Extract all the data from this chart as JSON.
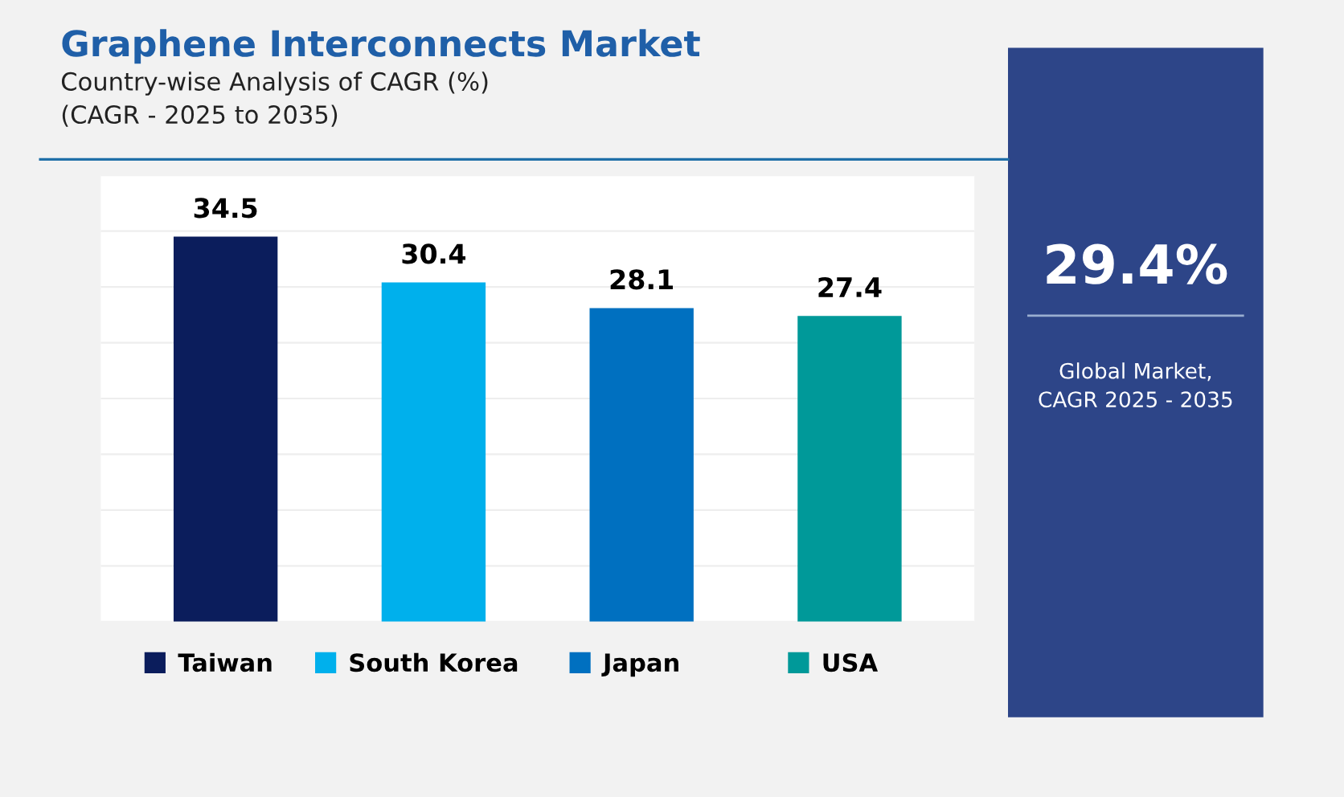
{
  "chart_data": [
    {
      "type": "bar",
      "title": "Graphene Interconnects Market",
      "subtitle": "Country-wise Analysis of CAGR (%)\n(CAGR - 2025 to 2035)",
      "categories": [
        "Taiwan",
        "South Korea",
        "Japan",
        "USA"
      ],
      "values": [
        34.5,
        30.4,
        28.1,
        27.4
      ],
      "colors": [
        "#0b1d5c",
        "#00b0ec",
        "#0070c0",
        "#009999"
      ],
      "data_labels": true,
      "grid": "y",
      "tick_labels": "x",
      "ylim": [
        0,
        40
      ],
      "yticks": [
        {
          "value": 0,
          "label": null
        },
        {
          "value": 5,
          "label": null
        },
        {
          "value": 10,
          "label": null
        },
        {
          "value": 15,
          "label": null
        },
        {
          "value": 20,
          "label": null
        },
        {
          "value": 25,
          "label": null
        },
        {
          "value": 30,
          "label": null
        },
        {
          "value": 35,
          "label": null
        },
        {
          "value": 40,
          "label": null
        }
      ]
    },
    {
      "type": "other",
      "title": "29.4%",
      "annotations": [
        "Global Market,\nCAGR 2025 - 2035"
      ]
    }
  ]
}
